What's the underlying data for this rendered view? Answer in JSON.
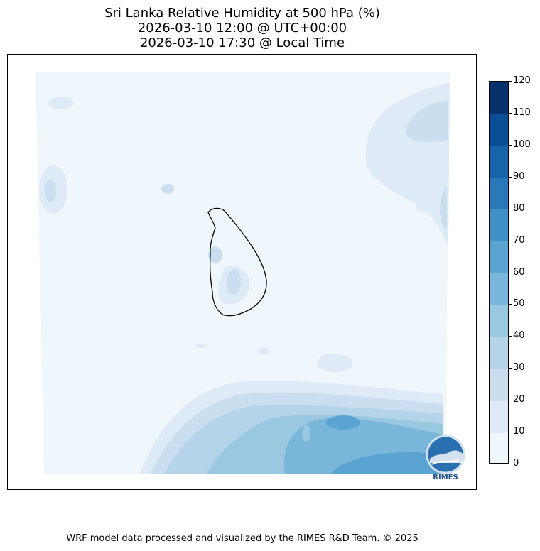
{
  "title": {
    "line1": "Sri Lanka Relative Humidity at 500 hPa (%)",
    "line2": "2026-03-10 12:00 @ UTC+00:00",
    "line3": "2026-03-10 17:30 @ Local Time"
  },
  "colorbar": {
    "levels": [
      0,
      10,
      20,
      30,
      40,
      50,
      60,
      70,
      80,
      90,
      100,
      110,
      120
    ],
    "colors": [
      "#eff6fc",
      "#deebf7",
      "#cadef0",
      "#b5d4e9",
      "#9ac8e0",
      "#7ab6d9",
      "#5ba3d0",
      "#4090c5",
      "#2979b9",
      "#1764ab",
      "#0a4f96",
      "#08306b"
    ],
    "tick_labels": [
      "0",
      "10",
      "20",
      "30",
      "40",
      "50",
      "60",
      "70",
      "80",
      "90",
      "100",
      "110",
      "120"
    ]
  },
  "logo": {
    "text": "RIMES",
    "icon": "rimes-logo-icon"
  },
  "footer": "WRF model data processed and visualized by the RIMES R&D Team. © 2025"
}
